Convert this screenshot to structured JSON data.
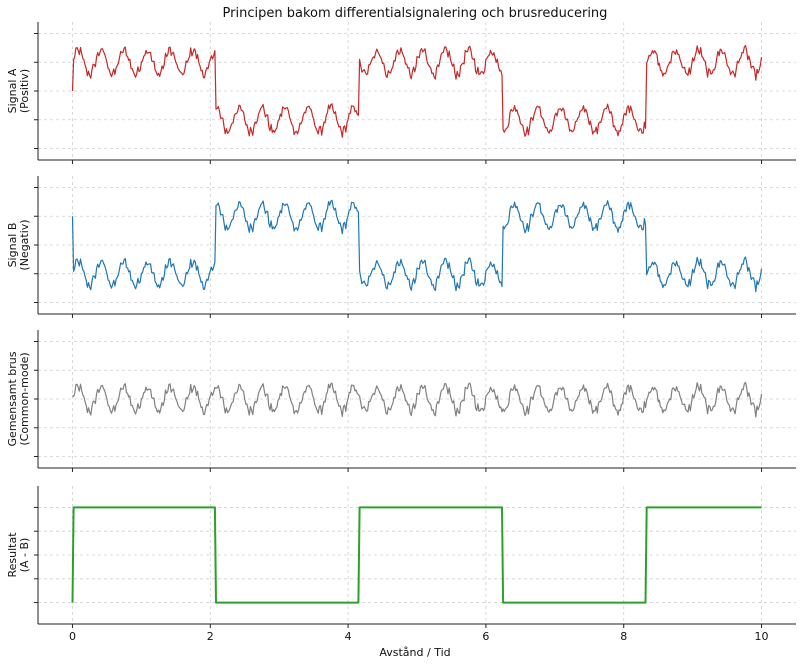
{
  "chart_data": {
    "type": "line",
    "title": "Principen bakom differentialsignalering och brusreducering",
    "xlabel": "Avstånd / Tid",
    "xlim": [
      -0.5,
      10.5
    ],
    "xticks": [
      0,
      2,
      4,
      6,
      8,
      10
    ],
    "grid": true,
    "panels": [
      {
        "ylabel": [
          "Signal A",
          "(Positiv)"
        ],
        "series": [
          {
            "color": "#c62828",
            "kind": "noisy",
            "base": "square",
            "high": 1,
            "low": -1,
            "noise_amp": 0.5,
            "noise_periods": 30,
            "start": 0
          }
        ],
        "ylim": [
          -2.4,
          2.4
        ]
      },
      {
        "ylabel": [
          "Signal B",
          "(Negativ)"
        ],
        "series": [
          {
            "color": "#1f77b4",
            "kind": "noisy",
            "base": "square_inverted",
            "high": 1,
            "low": -1,
            "noise_amp": 0.5,
            "noise_periods": 30,
            "start": 1
          }
        ],
        "ylim": [
          -2.4,
          2.4
        ]
      },
      {
        "ylabel": [
          "Gemensamt brus",
          "(Common-mode)"
        ],
        "series": [
          {
            "color": "#808080",
            "kind": "noise",
            "noise_amp": 0.5,
            "noise_periods": 30
          }
        ],
        "ylim": [
          -2.4,
          2.4
        ]
      },
      {
        "ylabel": [
          "Resultat",
          "(A - B)"
        ],
        "series": [
          {
            "color": "#2ca02c",
            "kind": "square",
            "high": 2,
            "low": -2,
            "start": -2
          }
        ],
        "ylim": [
          -2.9,
          2.9
        ]
      }
    ],
    "square_wave": {
      "high_intervals": [
        [
          0,
          2.08
        ],
        [
          4.16,
          6.25
        ],
        [
          8.33,
          10
        ]
      ],
      "x_range": [
        0,
        10
      ]
    }
  }
}
